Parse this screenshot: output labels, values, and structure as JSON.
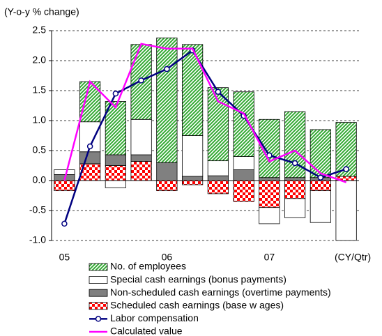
{
  "chart_data": {
    "type": "bar",
    "title": "(Y-o-y % change)",
    "x_label": "(CY/Qtr)",
    "categories": [
      "05",
      null,
      null,
      null,
      "06",
      null,
      null,
      null,
      "07",
      null,
      null,
      null
    ],
    "ylim": [
      -1.0,
      2.5
    ],
    "yticks": [
      {
        "value": 2.5,
        "label": "2.5"
      },
      {
        "value": 2,
        "label": "2.0"
      },
      {
        "value": 1.5,
        "label": "1.5"
      },
      {
        "value": 1,
        "label": "1.0"
      },
      {
        "value": 0.5,
        "label": "0.5"
      },
      {
        "value": 0,
        "label": "0.0"
      },
      {
        "value": -0.5,
        "label": "-0.5"
      },
      {
        "value": -1,
        "label": "-1.0"
      }
    ],
    "grid": true,
    "stacked": true,
    "series": [
      {
        "name": "Scheduled cash earnings (base w ages)",
        "color": "#ff0000",
        "pattern": "checker",
        "values": [
          -0.17,
          0.28,
          0.25,
          0.32,
          -0.17,
          -0.07,
          -0.22,
          -0.35,
          -0.45,
          -0.3,
          -0.17,
          0.07
        ]
      },
      {
        "name": "Non-scheduled cash earnings (overtime payments)",
        "color": "#808080",
        "pattern": "solid",
        "values": [
          0.1,
          0.2,
          0.18,
          0.11,
          0.3,
          0.07,
          0.08,
          0.18,
          0.05,
          0.05,
          0.05,
          0.0
        ]
      },
      {
        "name": "Special cash earnings (bonus payments)",
        "color": "#ffffff",
        "pattern": "solid",
        "values": [
          0.08,
          0.5,
          -0.12,
          0.59,
          0.0,
          0.68,
          0.25,
          0.22,
          -0.27,
          -0.32,
          -0.53,
          -1.0
        ]
      },
      {
        "name": "No. of employees",
        "color": "#33aa33",
        "pattern": "hatch",
        "values": [
          0.0,
          0.67,
          0.89,
          1.25,
          2.08,
          1.52,
          1.22,
          1.08,
          0.97,
          1.1,
          0.8,
          0.9
        ]
      },
      {
        "name": "Labor compensation",
        "type": "line",
        "color": "#000080",
        "marker": "circle",
        "values": [
          -0.72,
          0.57,
          1.45,
          1.67,
          1.86,
          2.17,
          1.48,
          1.08,
          0.42,
          0.29,
          0.05,
          0.19
        ]
      },
      {
        "name": "Calculated value",
        "type": "line",
        "color": "#ff00ff",
        "values": [
          0.0,
          1.65,
          1.22,
          2.28,
          2.2,
          2.2,
          1.32,
          1.12,
          0.32,
          0.5,
          0.12,
          -0.03
        ]
      }
    ],
    "legend_order": [
      3,
      2,
      1,
      0,
      4,
      5
    ]
  }
}
